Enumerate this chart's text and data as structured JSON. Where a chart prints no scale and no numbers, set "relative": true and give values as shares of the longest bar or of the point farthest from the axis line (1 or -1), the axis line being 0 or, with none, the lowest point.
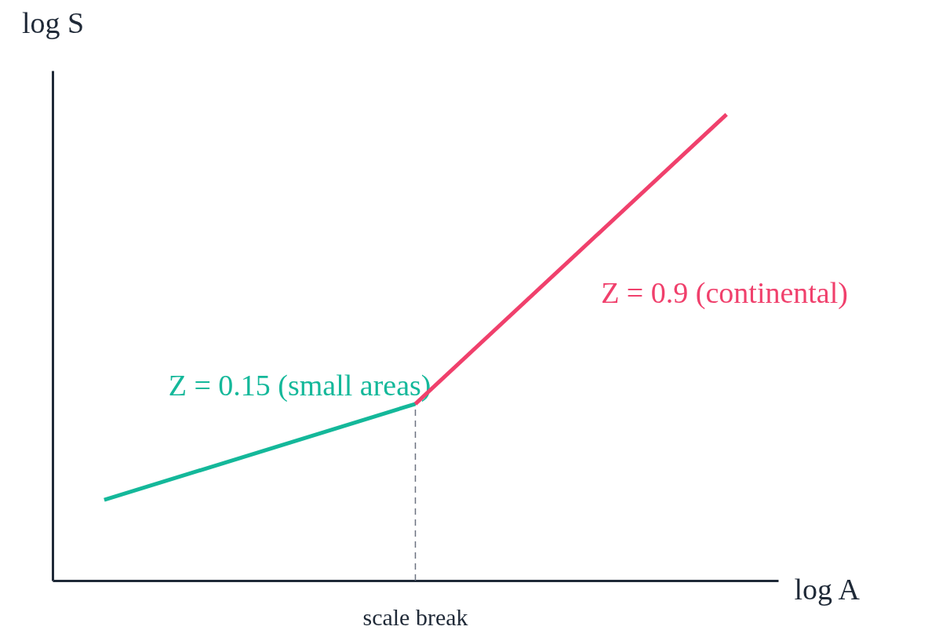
{
  "chart_data": {
    "type": "line",
    "relative": true,
    "xlabel": "log A",
    "ylabel": "log S",
    "categories": [
      null,
      null,
      null
    ],
    "series": [
      {
        "name": "Z = 0.15 (small areas)",
        "color": "#14b89a",
        "values": [
          0.173,
          0.379,
          null
        ]
      },
      {
        "name": "Z = 0.9 (continental)",
        "color": "#f0406c",
        "values": [
          null,
          0.379,
          1
        ]
      }
    ],
    "annotations": [
      "scale break"
    ],
    "grid": false,
    "marker": "none",
    "line_style": "solid"
  }
}
